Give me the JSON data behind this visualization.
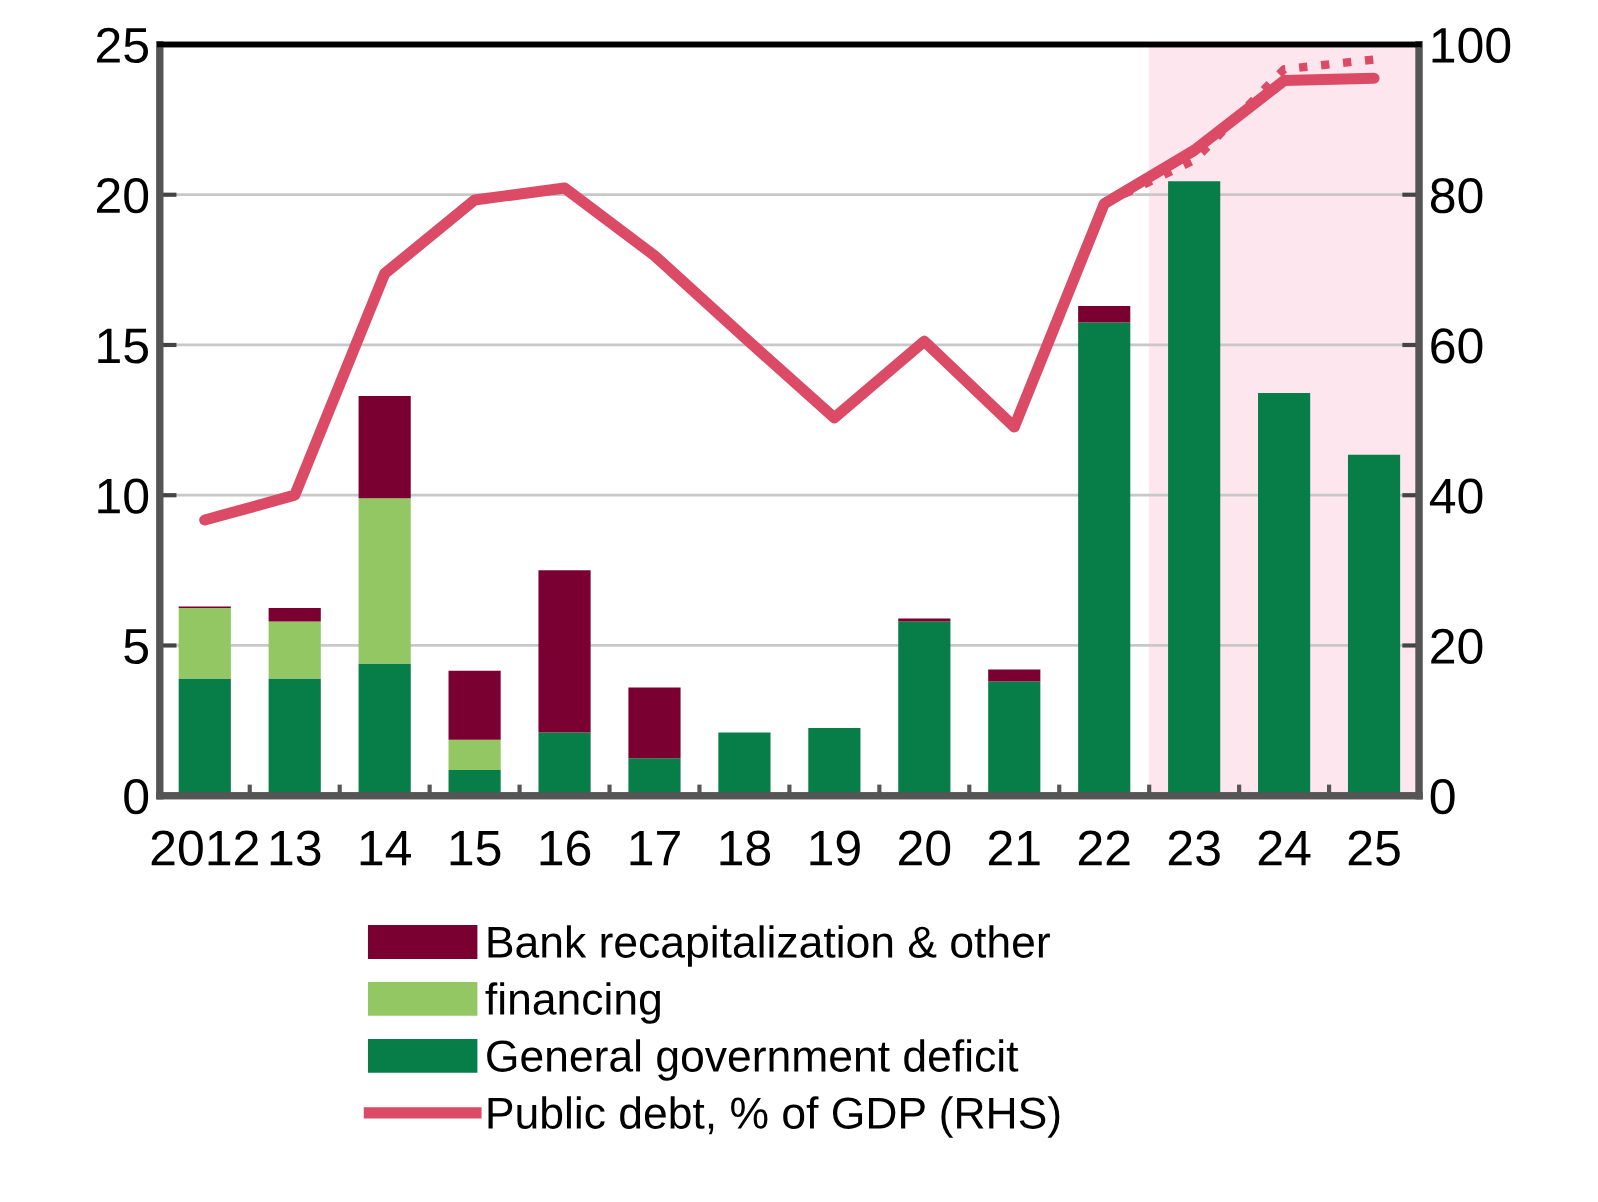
{
  "chart_data": {
    "type": "bar",
    "stacked": true,
    "categories": [
      "2012",
      "13",
      "14",
      "15",
      "16",
      "17",
      "18",
      "19",
      "20",
      "21",
      "22",
      "23",
      "24",
      "25"
    ],
    "series": [
      {
        "name": "General government deficit",
        "color": "#077e47",
        "values": [
          3.9,
          3.9,
          4.4,
          0.86,
          2.1,
          1.25,
          2.1,
          2.25,
          5.8,
          3.8,
          15.75,
          20.45,
          13.4,
          11.35
        ]
      },
      {
        "name": "financing",
        "color": "#92c764",
        "values": [
          2.35,
          1.9,
          5.5,
          1.0,
          null,
          null,
          null,
          null,
          null,
          null,
          null,
          null,
          null,
          null
        ]
      },
      {
        "name": "Bank recapitalization & other",
        "color": "#7b0032",
        "values": [
          0.05,
          0.45,
          3.4,
          2.3,
          5.4,
          2.35,
          null,
          null,
          0.1,
          0.4,
          0.55,
          null,
          null,
          null
        ]
      },
      {
        "name": "Public debt, % of GDP (RHS)",
        "type": "line",
        "axis": "y2",
        "color": "#dc4b65",
        "line_style": "solid",
        "values": [
          36.7,
          40.0,
          69.5,
          79.3,
          80.9,
          71.9,
          61,
          50.3,
          60.5,
          49.1,
          78.8,
          85.9,
          95.2,
          95.5
        ]
      },
      {
        "type": "line",
        "axis": "y2",
        "color": "#dc4b65",
        "line_style": "dotted",
        "values": [
          null,
          null,
          null,
          null,
          null,
          null,
          null,
          null,
          null,
          null,
          78.8,
          84.6,
          96.7,
          98.0
        ]
      }
    ],
    "ylim": [
      0,
      25
    ],
    "yticks": [
      0,
      5,
      10,
      15,
      20,
      25
    ],
    "y2lim": [
      0,
      100
    ],
    "y2ticks": [
      0,
      20,
      40,
      60,
      80,
      100
    ],
    "bands": [
      {
        "axis": "x",
        "from": "23",
        "to": "25",
        "color": "#fde6ee"
      }
    ],
    "grid": "y",
    "legend": "bottom"
  }
}
